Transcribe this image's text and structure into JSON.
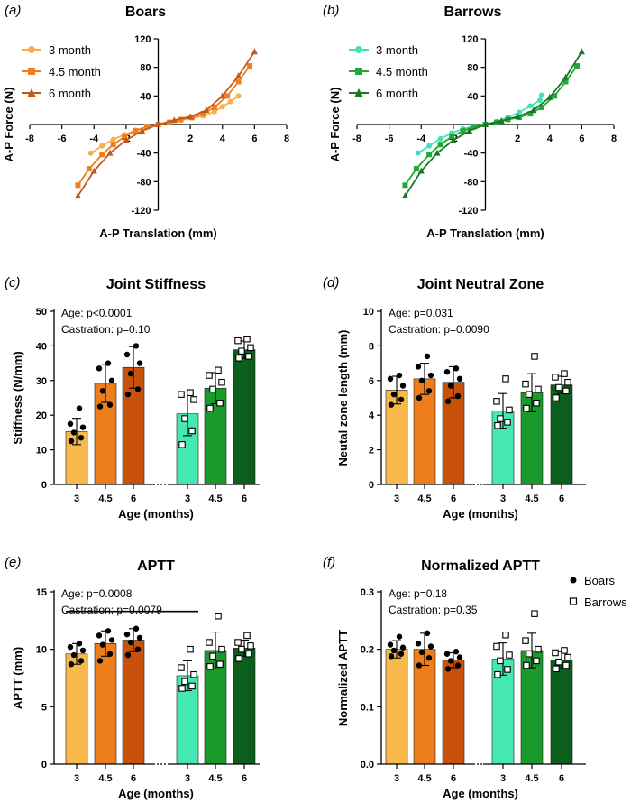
{
  "figure": {
    "groups": [
      "Boars",
      "Barrows"
    ],
    "colors": {
      "boar_3": "#F7B94C",
      "boar_45": "#EE7E1B",
      "boar_6": "#C8520B",
      "barrow_3": "#45E8B0",
      "barrow_45": "#1A9A2B",
      "barrow_6": "#0C5E1D",
      "line_boar_3": "#F5B04A",
      "line_boar_45": "#EE7E20",
      "line_boar_6": "#C05A1A",
      "line_barrow_3": "#44E0B5",
      "line_barrow_45": "#22A836",
      "line_barrow_6": "#1A7A24"
    }
  },
  "chart_data": [
    {
      "id": "a",
      "panel_label": "(a)",
      "type": "line",
      "title": "Boars",
      "xlabel": "A-P Translation (mm)",
      "ylabel": "A-P Force (N)",
      "xlim": [
        -8,
        8
      ],
      "ylim": [
        -120,
        120
      ],
      "xticks": [
        "-8",
        "-6",
        "-4",
        "-2",
        "2",
        "4",
        "6",
        "8"
      ],
      "yticks": [
        "120",
        "80",
        "40",
        "-40",
        "-80",
        "-120"
      ],
      "legend": [
        "3 month",
        "4.5 month",
        "6 month"
      ],
      "series": [
        {
          "name": "3 month",
          "color_key": "line_boar_3",
          "marker": "circle",
          "points": [
            [
              -4.2,
              -40
            ],
            [
              -3.5,
              -30
            ],
            [
              -2.8,
              -21
            ],
            [
              -2.1,
              -14
            ],
            [
              -1.4,
              -8
            ],
            [
              -0.7,
              -3
            ],
            [
              0,
              0
            ],
            [
              0.7,
              3
            ],
            [
              1.4,
              6
            ],
            [
              2.1,
              9
            ],
            [
              2.8,
              12
            ],
            [
              3.5,
              18
            ],
            [
              4.0,
              25
            ],
            [
              4.5,
              32
            ],
            [
              5.0,
              40
            ]
          ]
        },
        {
          "name": "4.5 month",
          "color_key": "line_boar_45",
          "marker": "square",
          "points": [
            [
              -5.0,
              -85
            ],
            [
              -4.3,
              -62
            ],
            [
              -3.5,
              -42
            ],
            [
              -2.8,
              -28
            ],
            [
              -2.1,
              -17
            ],
            [
              -1.4,
              -9
            ],
            [
              -0.7,
              -3
            ],
            [
              0,
              0
            ],
            [
              0.7,
              3
            ],
            [
              1.4,
              7
            ],
            [
              2.1,
              10
            ],
            [
              2.8,
              15
            ],
            [
              3.5,
              24
            ],
            [
              4.3,
              40
            ],
            [
              5.0,
              60
            ],
            [
              5.7,
              82
            ]
          ]
        },
        {
          "name": "6 month",
          "color_key": "line_boar_6",
          "marker": "triangle",
          "points": [
            [
              -5.0,
              -100
            ],
            [
              -4.0,
              -65
            ],
            [
              -3.0,
              -40
            ],
            [
              -2.0,
              -22
            ],
            [
              -1.0,
              -9
            ],
            [
              0,
              0
            ],
            [
              1.0,
              6
            ],
            [
              2.0,
              11
            ],
            [
              3.0,
              20
            ],
            [
              4.0,
              40
            ],
            [
              5.0,
              68
            ],
            [
              6.0,
              102
            ]
          ]
        }
      ]
    },
    {
      "id": "b",
      "panel_label": "(b)",
      "type": "line",
      "title": "Barrows",
      "xlabel": "A-P Translation (mm)",
      "ylabel": "A-P Force (N)",
      "xlim": [
        -8,
        8
      ],
      "ylim": [
        -120,
        120
      ],
      "xticks": [
        "-8",
        "-6",
        "-4",
        "-2",
        "2",
        "4",
        "6",
        "8"
      ],
      "yticks": [
        "120",
        "80",
        "40",
        "-40",
        "-80",
        "-120"
      ],
      "legend": [
        "3 month",
        "4.5 month",
        "6 month"
      ],
      "series": [
        {
          "name": "3 month",
          "color_key": "line_barrow_3",
          "marker": "circle",
          "points": [
            [
              -4.2,
              -40
            ],
            [
              -3.5,
              -30
            ],
            [
              -2.8,
              -20
            ],
            [
              -2.1,
              -12
            ],
            [
              -1.4,
              -6
            ],
            [
              -0.7,
              -2
            ],
            [
              0,
              0
            ],
            [
              0.7,
              4
            ],
            [
              1.4,
              10
            ],
            [
              2.1,
              17
            ],
            [
              2.8,
              26
            ],
            [
              3.4,
              34
            ],
            [
              3.5,
              41
            ]
          ]
        },
        {
          "name": "4.5 month",
          "color_key": "line_barrow_45",
          "marker": "square",
          "points": [
            [
              -5.0,
              -85
            ],
            [
              -4.3,
              -62
            ],
            [
              -3.5,
              -42
            ],
            [
              -2.8,
              -28
            ],
            [
              -2.1,
              -17
            ],
            [
              -1.4,
              -9
            ],
            [
              -0.7,
              -3
            ],
            [
              0,
              0
            ],
            [
              0.7,
              3
            ],
            [
              1.4,
              7
            ],
            [
              2.1,
              10
            ],
            [
              2.8,
              15
            ],
            [
              3.5,
              24
            ],
            [
              4.3,
              40
            ],
            [
              5.0,
              60
            ],
            [
              5.7,
              82
            ]
          ]
        },
        {
          "name": "6 month",
          "color_key": "line_barrow_6",
          "marker": "triangle",
          "points": [
            [
              -5.0,
              -100
            ],
            [
              -4.0,
              -65
            ],
            [
              -3.0,
              -40
            ],
            [
              -2.0,
              -22
            ],
            [
              -1.0,
              -9
            ],
            [
              0,
              0
            ],
            [
              1.0,
              5
            ],
            [
              2.0,
              11
            ],
            [
              3.0,
              20
            ],
            [
              4.0,
              38
            ],
            [
              5.0,
              66
            ],
            [
              6.0,
              102
            ]
          ]
        }
      ]
    },
    {
      "id": "c",
      "panel_label": "(c)",
      "type": "bar",
      "title": "Joint Stiffness",
      "ylabel": "Stiffness (N/mm)",
      "xlabel": "Age (months)",
      "ylim": [
        0,
        50
      ],
      "yticks": [
        "0",
        "10",
        "20",
        "30",
        "40",
        "50"
      ],
      "categories": [
        "3",
        "4.5",
        "6",
        "3",
        "4.5",
        "6"
      ],
      "annotations": [
        "Age: p<0.0001",
        "Castration: p=0.10"
      ],
      "bars": [
        {
          "group": "Boars",
          "age": "3",
          "mean": 15.3,
          "sd": 3.8,
          "color_key": "boar_3",
          "points": [
            12.5,
            13.5,
            15.0,
            16.5,
            17.5,
            22.0
          ]
        },
        {
          "group": "Boars",
          "age": "4.5",
          "mean": 29.2,
          "sd": 5.5,
          "color_key": "boar_45",
          "points": [
            22.5,
            23.0,
            27.0,
            30.0,
            33.5,
            35.0
          ]
        },
        {
          "group": "Boars",
          "age": "6",
          "mean": 33.8,
          "sd": 6.0,
          "color_key": "boar_6",
          "points": [
            26.0,
            27.5,
            32.0,
            35.0,
            37.5,
            40.0
          ]
        },
        {
          "group": "Barrows",
          "age": "3",
          "mean": 20.4,
          "sd": 6.3,
          "color_key": "barrow_3",
          "points": [
            11.5,
            15.5,
            19.0,
            24.5,
            26.0,
            26.5
          ]
        },
        {
          "group": "Barrows",
          "age": "4.5",
          "mean": 27.8,
          "sd": 4.5,
          "color_key": "barrow_45",
          "points": [
            22.0,
            23.5,
            27.5,
            29.5,
            31.5,
            33.0
          ]
        },
        {
          "group": "Barrows",
          "age": "6",
          "mean": 38.9,
          "sd": 2.5,
          "color_key": "barrow_6",
          "points": [
            36.5,
            37.0,
            38.5,
            39.5,
            41.5,
            42.0
          ]
        }
      ]
    },
    {
      "id": "d",
      "panel_label": "(d)",
      "type": "bar",
      "title": "Joint Neutral Zone",
      "ylabel": "Neutal zone length (mm)",
      "xlabel": "Age (months)",
      "ylim": [
        0,
        10
      ],
      "yticks": [
        "0",
        "2",
        "4",
        "6",
        "8",
        "10"
      ],
      "categories": [
        "3",
        "4.5",
        "6",
        "3",
        "4.5",
        "6"
      ],
      "annotations": [
        "Age: p=0.031",
        "Castration: p=0.0090"
      ],
      "bars": [
        {
          "group": "Boars",
          "age": "3",
          "mean": 5.45,
          "sd": 0.8,
          "color_key": "boar_3",
          "points": [
            4.6,
            4.9,
            5.2,
            5.7,
            6.1,
            6.3
          ]
        },
        {
          "group": "Boars",
          "age": "4.5",
          "mean": 6.1,
          "sd": 0.9,
          "color_key": "boar_45",
          "points": [
            5.0,
            5.4,
            6.0,
            6.3,
            6.8,
            7.4
          ]
        },
        {
          "group": "Boars",
          "age": "6",
          "mean": 5.9,
          "sd": 0.9,
          "color_key": "boar_6",
          "points": [
            4.8,
            5.1,
            5.7,
            6.1,
            6.5,
            6.7
          ]
        },
        {
          "group": "Barrows",
          "age": "3",
          "mean": 4.25,
          "sd": 1.0,
          "color_key": "barrow_3",
          "points": [
            3.4,
            3.6,
            3.8,
            4.3,
            4.8,
            6.1
          ]
        },
        {
          "group": "Barrows",
          "age": "4.5",
          "mean": 5.3,
          "sd": 1.1,
          "color_key": "barrow_45",
          "points": [
            4.4,
            4.7,
            5.2,
            5.5,
            5.8,
            7.4
          ]
        },
        {
          "group": "Barrows",
          "age": "6",
          "mean": 5.75,
          "sd": 0.5,
          "color_key": "barrow_6",
          "points": [
            5.0,
            5.4,
            5.6,
            5.9,
            6.2,
            6.4
          ]
        }
      ]
    },
    {
      "id": "e",
      "panel_label": "(e)",
      "type": "bar",
      "title": "APTT",
      "ylabel": "APTT (mm)",
      "xlabel": "Age (months)",
      "ylim": [
        0,
        15
      ],
      "yticks": [
        "0",
        "5",
        "10",
        "15"
      ],
      "categories": [
        "3",
        "4.5",
        "6",
        "3",
        "4.5",
        "6"
      ],
      "annotations": [
        "Age: p=0.0008",
        "Castration: p=0.0079"
      ],
      "comparison_bracket": {
        "from_bar": 0,
        "to_bar": 3,
        "y": 13.3
      },
      "bars": [
        {
          "group": "Boars",
          "age": "3",
          "mean": 9.6,
          "sd": 0.9,
          "color_key": "boar_3",
          "points": [
            8.7,
            9.0,
            9.5,
            9.9,
            10.2,
            10.5
          ]
        },
        {
          "group": "Boars",
          "age": "4.5",
          "mean": 10.5,
          "sd": 1.1,
          "color_key": "boar_45",
          "points": [
            9.0,
            9.6,
            10.4,
            10.8,
            11.2,
            11.6
          ]
        },
        {
          "group": "Boars",
          "age": "6",
          "mean": 10.8,
          "sd": 1.0,
          "color_key": "boar_6",
          "points": [
            9.5,
            10.0,
            10.6,
            11.0,
            11.3,
            11.8
          ]
        },
        {
          "group": "Barrows",
          "age": "3",
          "mean": 7.7,
          "sd": 1.3,
          "color_key": "barrow_3",
          "points": [
            6.6,
            6.8,
            7.2,
            7.8,
            8.4,
            10.0
          ]
        },
        {
          "group": "Barrows",
          "age": "4.5",
          "mean": 9.9,
          "sd": 1.6,
          "color_key": "barrow_45",
          "points": [
            8.5,
            8.7,
            9.4,
            10.0,
            10.6,
            12.9
          ]
        },
        {
          "group": "Barrows",
          "age": "6",
          "mean": 10.1,
          "sd": 0.7,
          "color_key": "barrow_6",
          "points": [
            9.2,
            9.6,
            10.0,
            10.3,
            10.6,
            11.2
          ]
        }
      ]
    },
    {
      "id": "f",
      "panel_label": "(f)",
      "type": "bar",
      "title": "Normalized APTT",
      "ylabel": "Normalized APTT",
      "xlabel": "Age (months)",
      "ylim": [
        0,
        0.3
      ],
      "yticks": [
        "0.0",
        "0.1",
        "0.2",
        "0.3"
      ],
      "categories": [
        "3",
        "4.5",
        "6",
        "3",
        "4.5",
        "6"
      ],
      "annotations": [
        "Age: p=0.18",
        "Castration: p=0.35"
      ],
      "legend": [
        "Boars",
        "Barrows"
      ],
      "bars": [
        {
          "group": "Boars",
          "age": "3",
          "mean": 0.2,
          "sd": 0.015,
          "color_key": "boar_3",
          "points": [
            0.188,
            0.192,
            0.198,
            0.203,
            0.208,
            0.222
          ]
        },
        {
          "group": "Boars",
          "age": "4.5",
          "mean": 0.2,
          "sd": 0.028,
          "color_key": "boar_45",
          "points": [
            0.172,
            0.185,
            0.195,
            0.205,
            0.21,
            0.228
          ]
        },
        {
          "group": "Boars",
          "age": "6",
          "mean": 0.181,
          "sd": 0.013,
          "color_key": "boar_6",
          "points": [
            0.166,
            0.172,
            0.18,
            0.186,
            0.192,
            0.196
          ]
        },
        {
          "group": "Barrows",
          "age": "3",
          "mean": 0.183,
          "sd": 0.028,
          "color_key": "barrow_3",
          "points": [
            0.156,
            0.165,
            0.18,
            0.19,
            0.205,
            0.225
          ]
        },
        {
          "group": "Barrows",
          "age": "4.5",
          "mean": 0.198,
          "sd": 0.03,
          "color_key": "barrow_45",
          "points": [
            0.172,
            0.18,
            0.192,
            0.2,
            0.215,
            0.262
          ]
        },
        {
          "group": "Barrows",
          "age": "6",
          "mean": 0.181,
          "sd": 0.015,
          "color_key": "barrow_6",
          "points": [
            0.166,
            0.172,
            0.178,
            0.186,
            0.194,
            0.198
          ]
        }
      ]
    }
  ]
}
